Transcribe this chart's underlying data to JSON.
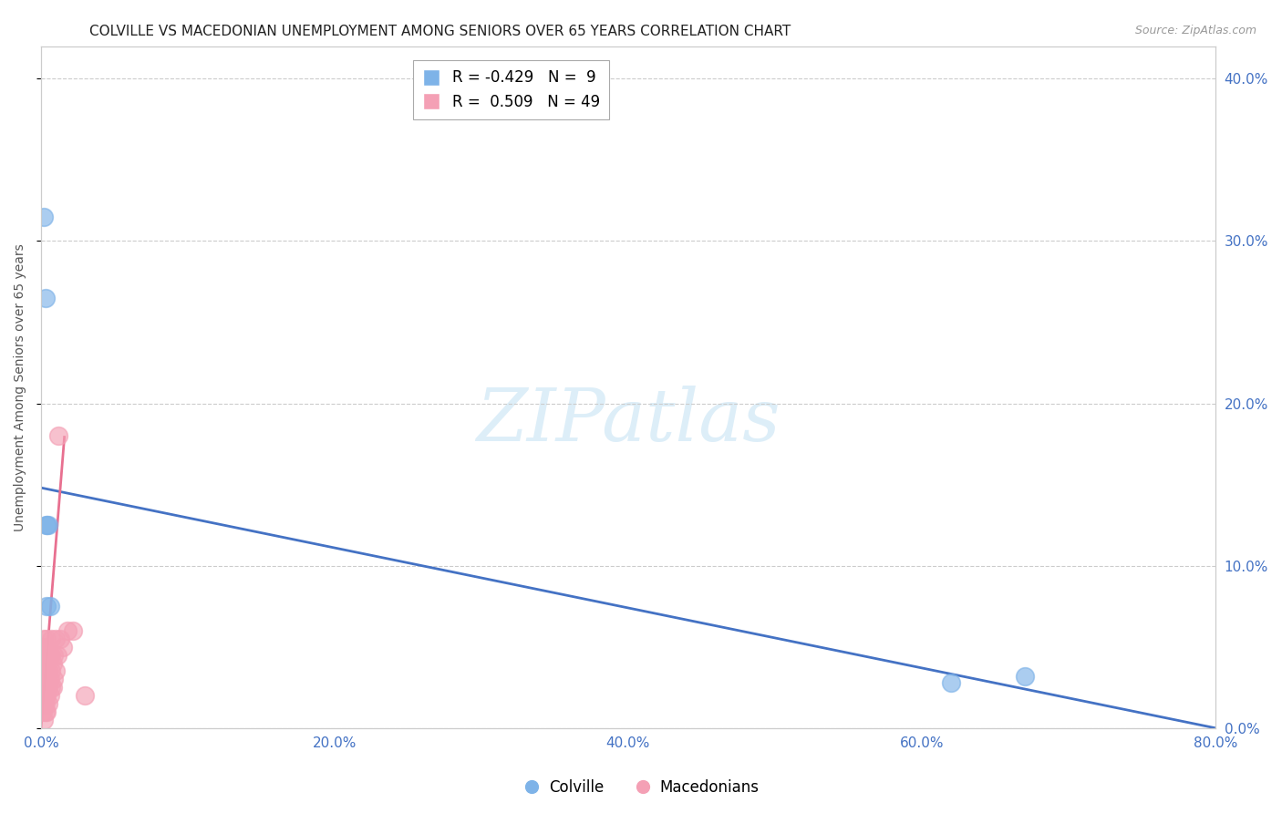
{
  "title": "COLVILLE VS MACEDONIAN UNEMPLOYMENT AMONG SENIORS OVER 65 YEARS CORRELATION CHART",
  "source": "Source: ZipAtlas.com",
  "ylabel": "Unemployment Among Seniors over 65 years",
  "xlim": [
    0.0,
    0.8
  ],
  "ylim": [
    0.0,
    0.42
  ],
  "xtick_vals": [
    0.0,
    0.2,
    0.4,
    0.6,
    0.8
  ],
  "ytick_vals": [
    0.0,
    0.1,
    0.2,
    0.3,
    0.4
  ],
  "colville_R": -0.429,
  "colville_N": 9,
  "macedonian_R": 0.509,
  "macedonian_N": 49,
  "colville_color": "#7eb3e8",
  "macedonian_color": "#f4a0b5",
  "colville_trend_color": "#4472C4",
  "macedonian_trend_color": "#E87090",
  "colville_scatter_x": [
    0.002,
    0.003,
    0.004,
    0.004,
    0.004,
    0.005,
    0.006,
    0.62,
    0.67
  ],
  "colville_scatter_y": [
    0.315,
    0.265,
    0.125,
    0.125,
    0.075,
    0.125,
    0.075,
    0.028,
    0.032
  ],
  "macedonian_scatter_x": [
    0.0,
    0.0,
    0.001,
    0.001,
    0.001,
    0.001,
    0.001,
    0.002,
    0.002,
    0.002,
    0.002,
    0.002,
    0.002,
    0.002,
    0.003,
    0.003,
    0.003,
    0.003,
    0.003,
    0.003,
    0.004,
    0.004,
    0.004,
    0.004,
    0.004,
    0.005,
    0.005,
    0.005,
    0.005,
    0.006,
    0.006,
    0.006,
    0.007,
    0.007,
    0.007,
    0.007,
    0.008,
    0.008,
    0.009,
    0.009,
    0.01,
    0.01,
    0.011,
    0.012,
    0.013,
    0.015,
    0.018,
    0.022,
    0.03
  ],
  "macedonian_scatter_y": [
    0.015,
    0.025,
    0.01,
    0.02,
    0.03,
    0.04,
    0.05,
    0.005,
    0.015,
    0.02,
    0.03,
    0.035,
    0.045,
    0.055,
    0.01,
    0.015,
    0.02,
    0.03,
    0.04,
    0.05,
    0.01,
    0.02,
    0.03,
    0.04,
    0.055,
    0.015,
    0.025,
    0.035,
    0.045,
    0.02,
    0.03,
    0.045,
    0.025,
    0.035,
    0.045,
    0.055,
    0.025,
    0.04,
    0.03,
    0.045,
    0.035,
    0.055,
    0.045,
    0.18,
    0.055,
    0.05,
    0.06,
    0.06,
    0.02
  ],
  "colville_trendline_x": [
    0.0,
    0.8
  ],
  "colville_trendline_y": [
    0.148,
    0.0
  ],
  "macedonian_trendline_x": [
    0.0,
    0.016
  ],
  "macedonian_trendline_y": [
    0.0,
    0.18
  ],
  "watermark_text": "ZIPatlas",
  "watermark_color": "#ddeef8",
  "title_fontsize": 11,
  "source_fontsize": 9,
  "tick_fontsize": 11,
  "ylabel_fontsize": 10,
  "legend_fontsize": 12
}
